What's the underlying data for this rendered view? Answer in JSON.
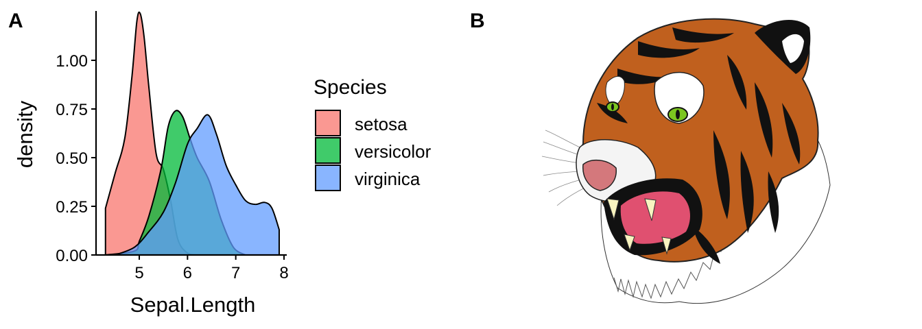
{
  "panel_a": {
    "label": "A"
  },
  "panel_b": {
    "label": "B"
  },
  "chart_data": {
    "type": "area",
    "subtype": "density",
    "title": "",
    "xlabel": "Sepal.Length",
    "ylabel": "density",
    "xlim": [
      4.3,
      7.9
    ],
    "ylim": [
      0,
      1.25
    ],
    "x_ticks": [
      5,
      6,
      7,
      8
    ],
    "x_tick_labels": [
      "5",
      "6",
      "7",
      "8"
    ],
    "y_ticks": [
      0,
      0.25,
      0.5,
      0.75,
      1.0
    ],
    "y_tick_labels": [
      "0.00",
      "0.25",
      "0.50",
      "0.75",
      "1.00"
    ],
    "grid": false,
    "legend": {
      "title": "Species",
      "position": "right"
    },
    "series": [
      {
        "name": "setosa",
        "color": "#F8766D",
        "x": [
          4.3,
          4.5,
          4.7,
          4.85,
          4.95,
          5.02,
          5.1,
          5.2,
          5.35,
          5.5,
          5.65,
          5.8,
          6.0,
          6.2
        ],
        "y": [
          0.24,
          0.42,
          0.6,
          0.92,
          1.2,
          1.24,
          1.12,
          0.86,
          0.52,
          0.44,
          0.28,
          0.08,
          0.01,
          0.0
        ]
      },
      {
        "name": "versicolor",
        "color": "#00BA38",
        "x": [
          4.3,
          4.9,
          5.0,
          5.2,
          5.45,
          5.6,
          5.75,
          5.9,
          6.05,
          6.2,
          6.45,
          6.7,
          6.95,
          7.2
        ],
        "y": [
          0.0,
          0.02,
          0.07,
          0.2,
          0.44,
          0.66,
          0.74,
          0.71,
          0.6,
          0.5,
          0.38,
          0.18,
          0.04,
          0.0
        ]
      },
      {
        "name": "virginica",
        "color": "#619CFF",
        "x": [
          4.5,
          4.9,
          5.2,
          5.5,
          5.75,
          6.0,
          6.2,
          6.42,
          6.6,
          6.8,
          7.0,
          7.2,
          7.4,
          7.6,
          7.75,
          7.9
        ],
        "y": [
          0.0,
          0.04,
          0.12,
          0.22,
          0.37,
          0.57,
          0.65,
          0.72,
          0.62,
          0.46,
          0.36,
          0.28,
          0.26,
          0.27,
          0.24,
          0.13
        ]
      }
    ]
  }
}
